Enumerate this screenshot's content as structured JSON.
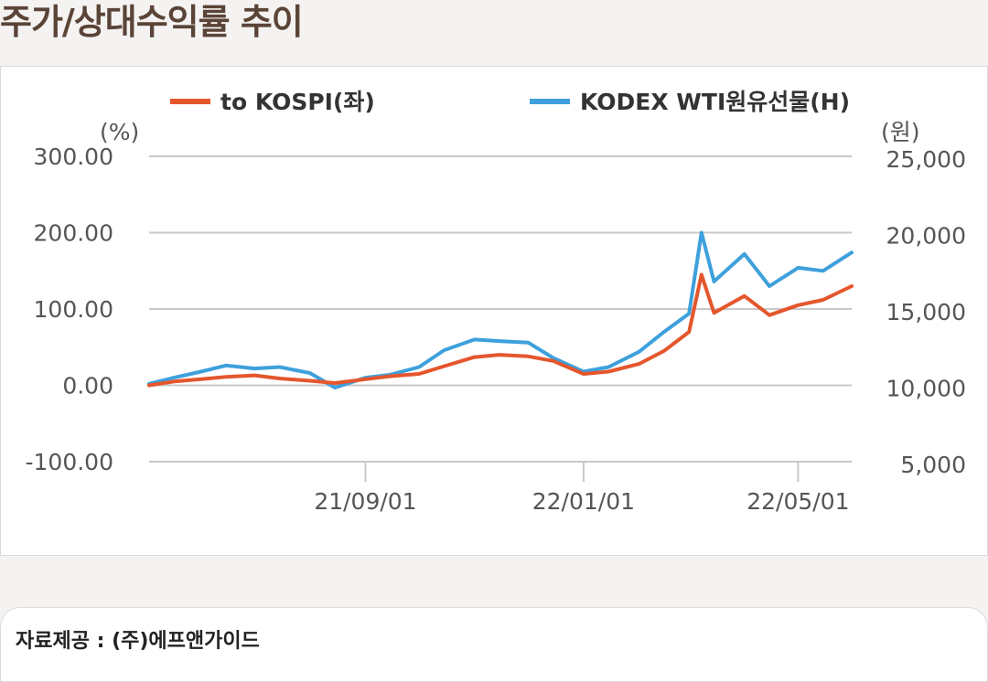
{
  "header": {
    "title": "주가/상대수익률 추이"
  },
  "footer": {
    "source": "자료제공 : (주)에프앤가이드"
  },
  "colors": {
    "kospi": "#e5562d",
    "kodex": "#3ea0dc",
    "grid": "#c8c8c8"
  },
  "chart_data": {
    "type": "line",
    "title": "",
    "legend": "top",
    "grid": true,
    "x_ticks": [
      "21/09/01",
      "22/01/01",
      "22/05/01"
    ],
    "x_range": [
      "2021-05-03",
      "2022-05-31"
    ],
    "y_left": {
      "unit_label": "(%)",
      "range": [
        -100,
        300
      ],
      "ticks": [
        "300.00",
        "200.00",
        "100.00",
        "0.00",
        "-100.00"
      ]
    },
    "y_right": {
      "unit_label": "(원)",
      "range": [
        5000,
        25000
      ],
      "ticks": [
        "25,000",
        "20,000",
        "15,000",
        "10,000",
        "5,000"
      ]
    },
    "series": [
      {
        "name": "to KOSPI(좌)",
        "axis": "left",
        "x": [
          "2021-05-03",
          "2021-05-17",
          "2021-06-01",
          "2021-06-15",
          "2021-07-01",
          "2021-07-15",
          "2021-08-01",
          "2021-08-15",
          "2021-09-01",
          "2021-09-15",
          "2021-10-01",
          "2021-10-15",
          "2021-11-01",
          "2021-11-15",
          "2021-12-01",
          "2021-12-15",
          "2022-01-01",
          "2022-01-15",
          "2022-02-01",
          "2022-02-15",
          "2022-03-01",
          "2022-03-08",
          "2022-03-15",
          "2022-04-01",
          "2022-04-15",
          "2022-05-01",
          "2022-05-15",
          "2022-05-31"
        ],
        "y": [
          0,
          5,
          8,
          11,
          13,
          9,
          6,
          3,
          8,
          12,
          15,
          25,
          37,
          40,
          38,
          32,
          15,
          18,
          28,
          45,
          70,
          145,
          95,
          117,
          92,
          105,
          112,
          130
        ]
      },
      {
        "name": "KODEX WTI원유선물(H)",
        "axis": "right",
        "x": [
          "2021-05-03",
          "2021-05-17",
          "2021-06-01",
          "2021-06-15",
          "2021-07-01",
          "2021-07-15",
          "2021-08-01",
          "2021-08-15",
          "2021-09-01",
          "2021-09-15",
          "2021-10-01",
          "2021-10-15",
          "2021-11-01",
          "2021-11-15",
          "2021-12-01",
          "2021-12-15",
          "2022-01-01",
          "2022-01-15",
          "2022-02-01",
          "2022-02-15",
          "2022-03-01",
          "2022-03-08",
          "2022-03-15",
          "2022-04-01",
          "2022-04-15",
          "2022-05-01",
          "2022-05-15",
          "2022-05-31"
        ],
        "y": [
          10100,
          10500,
          10900,
          11300,
          11100,
          11200,
          10800,
          9850,
          10500,
          10700,
          11200,
          12300,
          13000,
          12900,
          12800,
          11800,
          10900,
          11200,
          12200,
          13500,
          14700,
          20000,
          16800,
          18600,
          16500,
          17700,
          17500,
          18700
        ]
      }
    ]
  }
}
